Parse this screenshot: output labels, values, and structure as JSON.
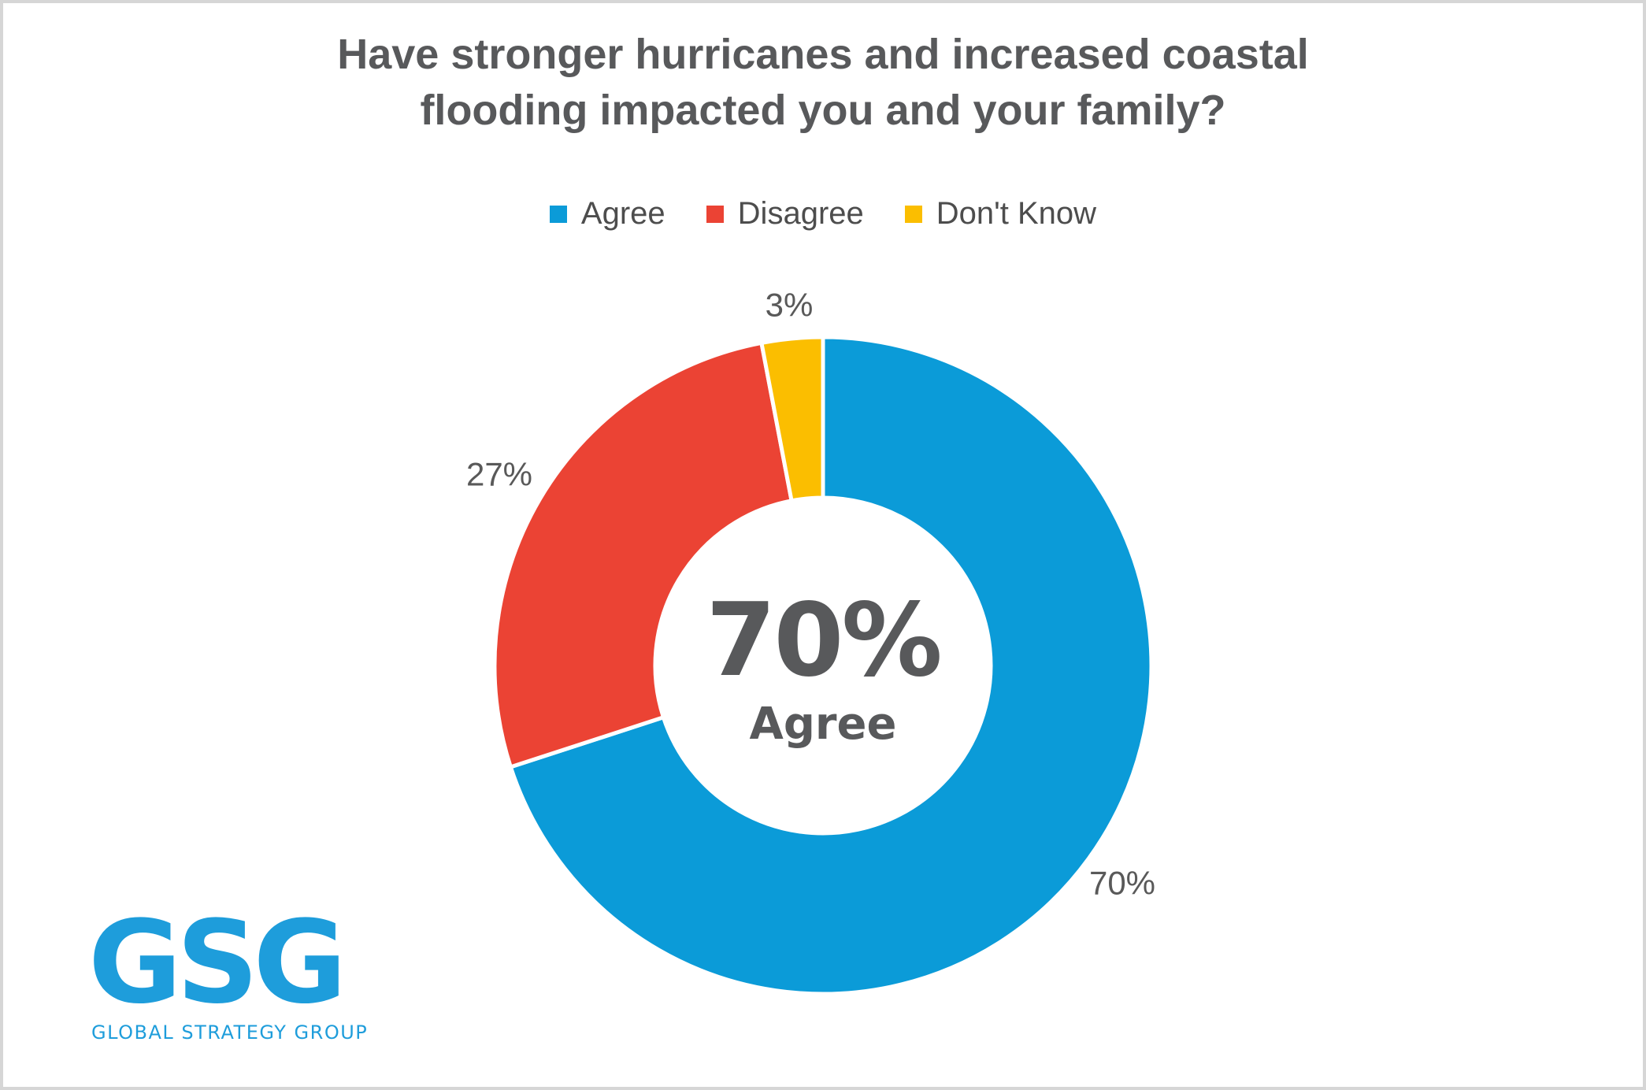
{
  "canvas": {
    "background": "#ffffff",
    "border_color": "#d6d6d6"
  },
  "chart_data": {
    "type": "pie",
    "subtype": "donut",
    "title": "Have stronger hurricanes and increased coastal\nflooding impacted you and your family?",
    "categories": [
      "Agree",
      "Disagree",
      "Don't Know"
    ],
    "values": [
      70,
      27,
      3
    ],
    "data_labels": [
      "70%",
      "27%",
      "3%"
    ],
    "colors": [
      "#0b9bd8",
      "#eb4334",
      "#fbbe00"
    ],
    "center_value": "70%",
    "center_category": "Agree",
    "legend_position": "top",
    "start_angle_deg": 0,
    "direction": "clockwise",
    "donut_hole_ratio": 0.51,
    "title_color": "#58595b",
    "label_color": "#595959",
    "legend_text_color": "#4d4d4d"
  },
  "logo": {
    "text": "GSG",
    "subtext": "GLOBAL STRATEGY GROUP",
    "color": "#1e9ddb"
  }
}
